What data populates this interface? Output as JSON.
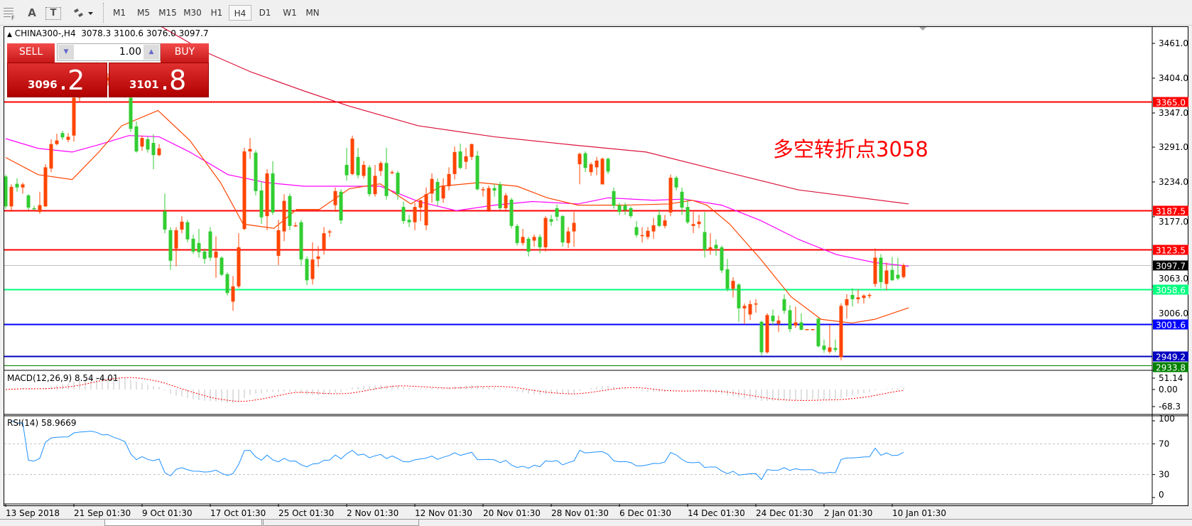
{
  "toolbar": {
    "tools": [
      {
        "icon": "grid-f-icon"
      },
      {
        "label": "A"
      },
      {
        "label": "T"
      },
      {
        "icon": "shapes-dropdown-icon"
      }
    ],
    "timeframes": [
      "M1",
      "M5",
      "M15",
      "M30",
      "H1",
      "H4",
      "D1",
      "W1",
      "MN"
    ],
    "active_timeframe": "H4"
  },
  "chart": {
    "title": "CHINA300-,H4",
    "ohlc_text": "3078.3 3100.6 3076.0 3097.7",
    "annotation": "多空转折点3058",
    "colors": {
      "up": "#ff4500",
      "down": "#32cd32",
      "ma_fast": "#ff4500",
      "ma_mid": "#ff00ff",
      "ma_slow": "#dc143c"
    }
  },
  "trade_panel": {
    "sell_label": "SELL",
    "buy_label": "BUY",
    "volume": "1.00",
    "sell_price_main": "3096",
    "sell_price_frac": ".2",
    "buy_price_main": "3101",
    "buy_price_frac": ".8"
  },
  "chart_data": {
    "type": "candlestick",
    "y_ticks": [
      "3461.0",
      "3404.0",
      "3347.0",
      "3291.0",
      "3234.0",
      "3177.0",
      "3063.0",
      "3006.0"
    ],
    "x_labels": [
      "13 Sep 2018",
      "21 Sep 01:30",
      "9 Oct 01:30",
      "17 Oct 01:30",
      "25 Oct 01:30",
      "2 Nov 01:30",
      "12 Nov 01:30",
      "20 Nov 01:30",
      "28 Nov 01:30",
      "6 Dec 01:30",
      "14 Dec 01:30",
      "24 Dec 01:30",
      "2 Jan 01:30",
      "10 Jan 01:30"
    ],
    "levels": [
      {
        "value": "3365.0",
        "color": "#ff0000"
      },
      {
        "value": "3187.5",
        "color": "#ff0000"
      },
      {
        "value": "3123.5",
        "color": "#ff0000"
      },
      {
        "value": "3097.7",
        "color": "#000000",
        "line": "#c0c0c0"
      },
      {
        "value": "3058.6",
        "color": "#00ff7f"
      },
      {
        "value": "3001.6",
        "color": "#0000ff"
      },
      {
        "value": "2949.2",
        "color": "#0000c0"
      },
      {
        "value": "2933.8",
        "color": "#008000"
      }
    ],
    "candles": [
      [
        3243,
        3246,
        3190,
        3194
      ],
      [
        3194,
        3230,
        3185,
        3226
      ],
      [
        3231,
        3240,
        3218,
        3225
      ],
      [
        3225,
        3233,
        3215,
        3230
      ],
      [
        3212,
        3214,
        3188,
        3192
      ],
      [
        3191,
        3195,
        3188,
        3190
      ],
      [
        3185,
        3218,
        3182,
        3196
      ],
      [
        3194,
        3263,
        3193,
        3258
      ],
      [
        3256,
        3304,
        3250,
        3296
      ],
      [
        3296,
        3313,
        3294,
        3302
      ],
      [
        3314,
        3318,
        3303,
        3307
      ],
      [
        3303,
        3314,
        3299,
        3308
      ],
      [
        3310,
        3380,
        3300,
        3372
      ],
      [
        3372,
        3395,
        3365,
        3390
      ],
      [
        3390,
        3410,
        3385,
        3402
      ],
      [
        3402,
        3420,
        3395,
        3415
      ],
      [
        3415,
        3430,
        3405,
        3410
      ],
      [
        3410,
        3418,
        3398,
        3400
      ],
      [
        3400,
        3412,
        3392,
        3405
      ],
      [
        3405,
        3415,
        3390,
        3395
      ],
      [
        3395,
        3400,
        3382,
        3388
      ],
      [
        3388,
        3392,
        3372,
        3378
      ],
      [
        3372,
        3378,
        3316,
        3321
      ],
      [
        3325,
        3333,
        3282,
        3284
      ],
      [
        3292,
        3310,
        3285,
        3306
      ],
      [
        3304,
        3308,
        3282,
        3287
      ],
      [
        3298,
        3312,
        3255,
        3278
      ],
      [
        3278,
        3296,
        3276,
        3289
      ],
      [
        3186,
        3215,
        3150,
        3156
      ],
      [
        3155,
        3160,
        3090,
        3105
      ],
      [
        3125,
        3160,
        3096,
        3155
      ],
      [
        3156,
        3178,
        3150,
        3169
      ],
      [
        3168,
        3172,
        3135,
        3140
      ],
      [
        3141,
        3148,
        3116,
        3120
      ],
      [
        3134,
        3157,
        3110,
        3119
      ],
      [
        3120,
        3125,
        3100,
        3108
      ],
      [
        3153,
        3160,
        3105,
        3110
      ],
      [
        3110,
        3145,
        3077,
        3120
      ],
      [
        3110,
        3112,
        3080,
        3082
      ],
      [
        3083,
        3086,
        3048,
        3052
      ],
      [
        3038,
        3080,
        3023,
        3063
      ],
      [
        3063,
        3150,
        3060,
        3127
      ],
      [
        3157,
        3290,
        3155,
        3284
      ],
      [
        3284,
        3306,
        3272,
        3288
      ],
      [
        3282,
        3286,
        3212,
        3219
      ],
      [
        3220,
        3235,
        3165,
        3176
      ],
      [
        3178,
        3255,
        3155,
        3248
      ],
      [
        3248,
        3268,
        3180,
        3184
      ],
      [
        3113,
        3172,
        3098,
        3155
      ],
      [
        3153,
        3214,
        3137,
        3203
      ],
      [
        3211,
        3215,
        3155,
        3162
      ],
      [
        3163,
        3168,
        3160,
        3163
      ],
      [
        3168,
        3172,
        3097,
        3107
      ],
      [
        3108,
        3112,
        3065,
        3073
      ],
      [
        3075,
        3135,
        3066,
        3107
      ],
      [
        3108,
        3129,
        3095,
        3112
      ],
      [
        3123,
        3160,
        3115,
        3150
      ],
      [
        3153,
        3156,
        3144,
        3153
      ],
      [
        3196,
        3225,
        3185,
        3219
      ],
      [
        3218,
        3222,
        3165,
        3171
      ],
      [
        3262,
        3290,
        3236,
        3245
      ],
      [
        3247,
        3310,
        3245,
        3305
      ],
      [
        3275,
        3290,
        3240,
        3245
      ],
      [
        3244,
        3268,
        3240,
        3262
      ],
      [
        3258,
        3262,
        3210,
        3214
      ],
      [
        3214,
        3262,
        3210,
        3244
      ],
      [
        3252,
        3268,
        3244,
        3265
      ],
      [
        3265,
        3290,
        3205,
        3211
      ],
      [
        3250,
        3253,
        3247,
        3250
      ],
      [
        3249,
        3252,
        3205,
        3214
      ],
      [
        3193,
        3202,
        3165,
        3170
      ],
      [
        3172,
        3180,
        3160,
        3168
      ],
      [
        3168,
        3200,
        3155,
        3193
      ],
      [
        3192,
        3205,
        3170,
        3204
      ],
      [
        3163,
        3225,
        3155,
        3214
      ],
      [
        3215,
        3248,
        3200,
        3239
      ],
      [
        3234,
        3240,
        3195,
        3203
      ],
      [
        3207,
        3240,
        3200,
        3228
      ],
      [
        3227,
        3258,
        3220,
        3247
      ],
      [
        3247,
        3292,
        3238,
        3283
      ],
      [
        3284,
        3297,
        3255,
        3257
      ],
      [
        3267,
        3290,
        3255,
        3276
      ],
      [
        3275,
        3297,
        3270,
        3296
      ],
      [
        3277,
        3285,
        3220,
        3222
      ],
      [
        3222,
        3226,
        3210,
        3222
      ],
      [
        3188,
        3228,
        3185,
        3224
      ],
      [
        3224,
        3231,
        3210,
        3220
      ],
      [
        3230,
        3234,
        3188,
        3191
      ],
      [
        3191,
        3216,
        3188,
        3212
      ],
      [
        3205,
        3208,
        3158,
        3162
      ],
      [
        3162,
        3165,
        3130,
        3134
      ],
      [
        3134,
        3157,
        3130,
        3144
      ],
      [
        3141,
        3144,
        3112,
        3120
      ],
      [
        3138,
        3148,
        3128,
        3144
      ],
      [
        3144,
        3148,
        3117,
        3127
      ],
      [
        3127,
        3178,
        3120,
        3175
      ],
      [
        3173,
        3180,
        3162,
        3169
      ],
      [
        3191,
        3197,
        3170,
        3177
      ],
      [
        3178,
        3180,
        3128,
        3135
      ],
      [
        3134,
        3160,
        3126,
        3153
      ],
      [
        3153,
        3185,
        3128,
        3167
      ],
      [
        3263,
        3282,
        3230,
        3280
      ],
      [
        3281,
        3284,
        3250,
        3257
      ],
      [
        3250,
        3266,
        3244,
        3263
      ],
      [
        3258,
        3275,
        3245,
        3269
      ],
      [
        3230,
        3274,
        3230,
        3272
      ],
      [
        3272,
        3274,
        3247,
        3251
      ],
      [
        3219,
        3225,
        3190,
        3195
      ],
      [
        3196,
        3200,
        3180,
        3185
      ],
      [
        3196,
        3200,
        3180,
        3188
      ],
      [
        3191,
        3194,
        3175,
        3178
      ],
      [
        3160,
        3170,
        3143,
        3147
      ],
      [
        3147,
        3160,
        3135,
        3147
      ],
      [
        3144,
        3160,
        3140,
        3154
      ],
      [
        3153,
        3175,
        3141,
        3163
      ],
      [
        3180,
        3189,
        3160,
        3162
      ],
      [
        3162,
        3180,
        3158,
        3171
      ],
      [
        3184,
        3246,
        3178,
        3241
      ],
      [
        3241,
        3244,
        3220,
        3225
      ],
      [
        3218,
        3225,
        3180,
        3192
      ],
      [
        3193,
        3205,
        3165,
        3168
      ],
      [
        3162,
        3185,
        3150,
        3165
      ],
      [
        3165,
        3180,
        3158,
        3169
      ],
      [
        3152,
        3185,
        3110,
        3123
      ],
      [
        3123,
        3150,
        3115,
        3127
      ],
      [
        3131,
        3140,
        3113,
        3125
      ],
      [
        3127,
        3130,
        3085,
        3089
      ],
      [
        3091,
        3108,
        3055,
        3059
      ],
      [
        3059,
        3078,
        3045,
        3072
      ],
      [
        3066,
        3068,
        3005,
        3027
      ],
      [
        3027,
        3035,
        3001,
        3031
      ],
      [
        3017,
        3040,
        3008,
        3034
      ],
      [
        3035,
        3042,
        3020,
        3035
      ],
      [
        3005,
        3007,
        2950,
        2955
      ],
      [
        2955,
        3019,
        2953,
        3016
      ],
      [
        3015,
        3025,
        3000,
        3006
      ],
      [
        3002,
        3015,
        2988,
        3007
      ],
      [
        3042,
        3050,
        3018,
        3023
      ],
      [
        3024,
        3032,
        2988,
        2993
      ],
      [
        2999,
        3030,
        2995,
        3004
      ],
      [
        3004,
        3019,
        2991,
        2992
      ],
      [
        2993,
        2993,
        2993,
        2993
      ],
      [
        2993,
        2993,
        2993,
        2993
      ],
      [
        3010,
        3012,
        2963,
        2965
      ],
      [
        2966,
        2976,
        2954,
        2959
      ],
      [
        2956,
        3000,
        2953,
        2963
      ],
      [
        2962,
        2976,
        2955,
        2959
      ],
      [
        2947,
        3035,
        2942,
        3031
      ],
      [
        3032,
        3050,
        3010,
        3042
      ],
      [
        3049,
        3060,
        3030,
        3042
      ],
      [
        3042,
        3058,
        3035,
        3045
      ],
      [
        3044,
        3050,
        3035,
        3048
      ],
      [
        3049,
        3052,
        3043,
        3049
      ],
      [
        3067,
        3125,
        3062,
        3110
      ],
      [
        3110,
        3116,
        3060,
        3070
      ],
      [
        3067,
        3102,
        3057,
        3089
      ],
      [
        3090,
        3111,
        3072,
        3073
      ],
      [
        3082,
        3110,
        3073,
        3076
      ],
      [
        3078.3,
        3100.6,
        3076.0,
        3097.7
      ]
    ],
    "ma_fast": [
      [
        0,
        3274
      ],
      [
        5.7,
        3246
      ],
      [
        11.7,
        3238
      ],
      [
        16.4,
        3283
      ],
      [
        20.4,
        3326
      ],
      [
        26.8,
        3351
      ],
      [
        32.4,
        3302
      ],
      [
        37.8,
        3233
      ],
      [
        41.8,
        3165
      ],
      [
        47.2,
        3158
      ],
      [
        51.2,
        3189
      ],
      [
        55.2,
        3189
      ],
      [
        60.5,
        3223
      ],
      [
        65.9,
        3231
      ],
      [
        71.3,
        3198
      ],
      [
        76.6,
        3227
      ],
      [
        83.3,
        3233
      ],
      [
        90,
        3227
      ],
      [
        95.3,
        3208
      ],
      [
        100.7,
        3196
      ],
      [
        108.7,
        3196
      ],
      [
        116.7,
        3198
      ],
      [
        120.8,
        3204
      ],
      [
        123.4,
        3196
      ],
      [
        127.4,
        3165
      ],
      [
        132.8,
        3108
      ],
      [
        138.2,
        3046
      ],
      [
        143.5,
        3009
      ],
      [
        148.9,
        3003
      ],
      [
        152.9,
        3009
      ],
      [
        158.9,
        3028
      ]
    ],
    "ma_mid": [
      [
        0,
        3305
      ],
      [
        5.7,
        3289
      ],
      [
        11.7,
        3283
      ],
      [
        16.4,
        3295
      ],
      [
        21.7,
        3310
      ],
      [
        27,
        3308
      ],
      [
        32.4,
        3283
      ],
      [
        39.1,
        3246
      ],
      [
        45.8,
        3233
      ],
      [
        52.5,
        3227
      ],
      [
        59.2,
        3227
      ],
      [
        65.9,
        3227
      ],
      [
        72.6,
        3202
      ],
      [
        79.3,
        3187
      ],
      [
        86,
        3196
      ],
      [
        92.7,
        3202
      ],
      [
        100.7,
        3198
      ],
      [
        106,
        3208
      ],
      [
        114,
        3204
      ],
      [
        119.4,
        3206
      ],
      [
        126,
        3196
      ],
      [
        132.8,
        3171
      ],
      [
        139.5,
        3140
      ],
      [
        146.2,
        3115
      ],
      [
        152.9,
        3102
      ],
      [
        158.9,
        3096
      ]
    ],
    "ma_slow": [
      [
        25.8,
        3497
      ],
      [
        35.1,
        3447
      ],
      [
        43.2,
        3414
      ],
      [
        52.5,
        3383
      ],
      [
        60.5,
        3358
      ],
      [
        72.6,
        3326
      ],
      [
        86,
        3308
      ],
      [
        99.4,
        3295
      ],
      [
        112.7,
        3283
      ],
      [
        126,
        3252
      ],
      [
        139.5,
        3221
      ],
      [
        158.9,
        3198
      ]
    ],
    "macd": {
      "label": "MACD(12,26,9) 8.54 -4.01",
      "ticks": [
        "51.14",
        "0.00",
        "-68.3"
      ],
      "hist_color": "#c0c0c0",
      "signal_color": "#ff0000"
    },
    "rsi": {
      "label": "RSI(14) 58.9669",
      "ticks": [
        "100",
        "70",
        "30",
        "0"
      ],
      "levels": [
        70,
        30
      ],
      "color": "#1e90ff"
    }
  }
}
